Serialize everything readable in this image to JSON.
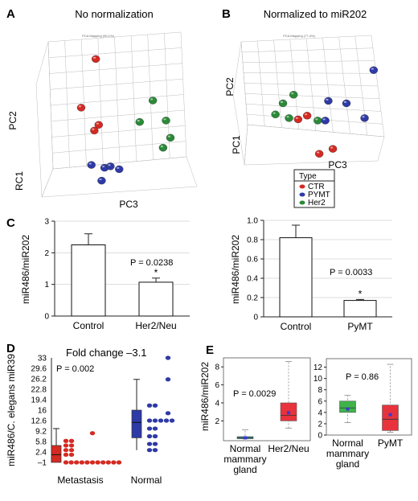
{
  "panels": {
    "A": {
      "label": "A",
      "title": "No normalization",
      "inner_title": "PCA Mapping (90.1%)",
      "axes": [
        "PC2",
        "RC1",
        "PC3"
      ],
      "points": [
        {
          "type": "CTR",
          "x": 0.38,
          "y": 0.12
        },
        {
          "type": "CTR",
          "x": 0.28,
          "y": 0.46
        },
        {
          "type": "CTR",
          "x": 0.4,
          "y": 0.58
        },
        {
          "type": "CTR",
          "x": 0.37,
          "y": 0.62
        },
        {
          "type": "Her2",
          "x": 0.77,
          "y": 0.41
        },
        {
          "type": "Her2",
          "x": 0.68,
          "y": 0.56
        },
        {
          "type": "Her2",
          "x": 0.86,
          "y": 0.55
        },
        {
          "type": "Her2",
          "x": 0.89,
          "y": 0.67
        },
        {
          "type": "Her2",
          "x": 0.84,
          "y": 0.74
        },
        {
          "type": "PYMT",
          "x": 0.35,
          "y": 0.86
        },
        {
          "type": "PYMT",
          "x": 0.44,
          "y": 0.88
        },
        {
          "type": "PYMT",
          "x": 0.48,
          "y": 0.87
        },
        {
          "type": "PYMT",
          "x": 0.54,
          "y": 0.89
        },
        {
          "type": "PYMT",
          "x": 0.42,
          "y": 0.97
        }
      ]
    },
    "B": {
      "label": "B",
      "title": "Normalized to miR202",
      "inner_title": "PCA Mapping (77.4%)",
      "axes": [
        "PC2",
        "PC1",
        "PC3"
      ],
      "points": [
        {
          "type": "PYMT",
          "x": 0.93,
          "y": 0.23
        },
        {
          "type": "Her2",
          "x": 0.4,
          "y": 0.43
        },
        {
          "type": "Her2",
          "x": 0.33,
          "y": 0.5
        },
        {
          "type": "PYMT",
          "x": 0.63,
          "y": 0.48
        },
        {
          "type": "PYMT",
          "x": 0.75,
          "y": 0.5
        },
        {
          "type": "Her2",
          "x": 0.28,
          "y": 0.59
        },
        {
          "type": "Her2",
          "x": 0.37,
          "y": 0.62
        },
        {
          "type": "CTR",
          "x": 0.43,
          "y": 0.63
        },
        {
          "type": "Her2",
          "x": 0.56,
          "y": 0.64
        },
        {
          "type": "CTR",
          "x": 0.49,
          "y": 0.6
        },
        {
          "type": "PYMT",
          "x": 0.61,
          "y": 0.64
        },
        {
          "type": "PYMT",
          "x": 0.87,
          "y": 0.62
        },
        {
          "type": "CTR",
          "x": 0.57,
          "y": 0.91
        },
        {
          "type": "CTR",
          "x": 0.66,
          "y": 0.87
        }
      ]
    },
    "legend": {
      "title": "Type",
      "items": [
        {
          "label": "CTR",
          "color": "#d42a22"
        },
        {
          "label": "PYMT",
          "color": "#2e3aa6"
        },
        {
          "label": "Her2",
          "color": "#2a8a38"
        }
      ]
    },
    "C": {
      "label": "C"
    },
    "D": {
      "label": "D",
      "annotation": "Fold change –3.1"
    },
    "E": {
      "label": "E"
    }
  },
  "chart_data": [
    {
      "type": "bar",
      "panel": "C-left",
      "categories": [
        "Control",
        "Her2/Neu"
      ],
      "values": [
        2.25,
        1.07
      ],
      "errors": [
        0.35,
        0.13
      ],
      "ylabel": "miR486/miR202",
      "ylim": [
        0,
        3
      ],
      "yticks": [
        "0",
        "1",
        "2",
        "3"
      ],
      "grid": true,
      "pvalue": "P = 0.0238",
      "significance": "*"
    },
    {
      "type": "bar",
      "panel": "C-right",
      "categories": [
        "Control",
        "PyMT"
      ],
      "values": [
        0.82,
        0.17
      ],
      "errors": [
        0.13,
        0.01
      ],
      "ylabel": "miR486/miR202",
      "ylim": [
        0,
        1.0
      ],
      "yticks": [
        "0",
        "0.2",
        "0.4",
        "0.6",
        "0.8",
        "1.0"
      ],
      "grid": true,
      "pvalue": "P = 0.0033",
      "significance": "*"
    },
    {
      "type": "box",
      "panel": "D",
      "ylabel": "miR486/C. elegans miR39",
      "yticks": [
        "–1",
        "2.4",
        "5.8",
        "9.2",
        "12.6",
        "16",
        "19.4",
        "22.8",
        "26.2",
        "29.6",
        "33"
      ],
      "categories": [
        "Metastasis",
        "Normal"
      ],
      "pvalue": "P = 0.002",
      "series": [
        {
          "category": "Metastasis",
          "color": "#d42a22",
          "box": {
            "whisker_low": -1,
            "q1": -1,
            "median": 1.5,
            "q3": 4.5,
            "whisker_high": 10
          },
          "points": [
            8.5,
            6,
            6,
            4.5,
            4.5,
            3,
            3,
            1.5,
            1.5,
            -1,
            -1,
            -1,
            -1,
            -1,
            -1,
            -1,
            -1,
            -1,
            -1,
            -1
          ]
        },
        {
          "category": "Normal",
          "color": "#2e3aa6",
          "box": {
            "whisker_low": 3,
            "q1": 7,
            "median": 12,
            "q3": 16,
            "whisker_high": 26
          },
          "points": [
            33,
            26,
            17.5,
            17.5,
            15,
            12.6,
            12.6,
            12.6,
            12.6,
            12.6,
            10,
            10,
            7.5,
            7.5,
            5,
            5,
            3,
            3
          ]
        }
      ]
    },
    {
      "type": "box",
      "panel": "E-left",
      "ylabel": "miR486/miR202",
      "ylim": [
        -0.2,
        9
      ],
      "yticks": [
        "2",
        "4",
        "6",
        "8"
      ],
      "categories": [
        "Normal mammary gland",
        "Her2/Neu"
      ],
      "pvalue": "P = 0.0029",
      "series": [
        {
          "category": "Normal mammary gland",
          "color": "#2a8a88",
          "box": {
            "whisker_low": 0,
            "q1": 0.02,
            "median": 0.1,
            "q3": 0.25,
            "whisker_high": 1.0
          },
          "mean": 0.12
        },
        {
          "category": "Her2/Neu",
          "color": "#e8323c",
          "box": {
            "whisker_low": 1.2,
            "q1": 2.0,
            "median": 2.6,
            "q3": 4.0,
            "whisker_high": 8.6
          },
          "mean": 2.9
        }
      ]
    },
    {
      "type": "box",
      "panel": "E-right",
      "ylim": [
        0,
        13.5
      ],
      "yticks": [
        "0",
        "2",
        "4",
        "6",
        "8",
        "10",
        "12"
      ],
      "categories": [
        "Normal mammary gland",
        "PyMT"
      ],
      "pvalue": "P = 0.86",
      "series": [
        {
          "category": "Normal mammary gland",
          "color": "#3fb34a",
          "box": {
            "whisker_low": 2.2,
            "q1": 4.0,
            "median": 4.8,
            "q3": 6.0,
            "whisker_high": 7.0
          },
          "mean": 4.6
        },
        {
          "category": "PyMT",
          "color": "#e8323c",
          "box": {
            "whisker_low": 0.5,
            "q1": 0.8,
            "median": 2.8,
            "q3": 5.3,
            "whisker_high": 12.5
          },
          "mean": 3.6
        }
      ]
    }
  ]
}
